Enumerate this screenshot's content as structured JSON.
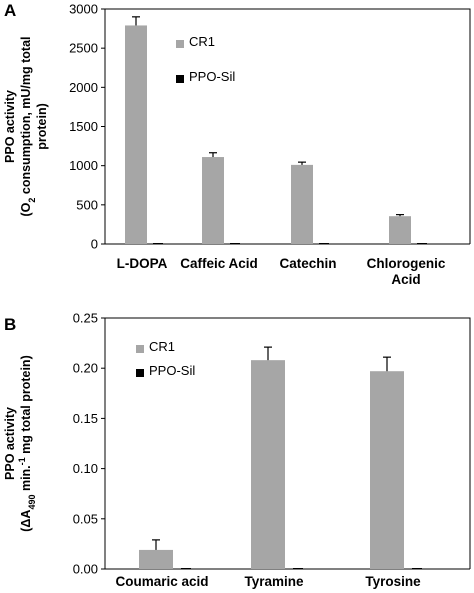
{
  "chart_data": [
    {
      "panel_letter": "A",
      "type": "bar",
      "ylabel_line1": "PPO activity",
      "ylabel_line2_parts": [
        "(O",
        "2",
        " consumption, mU/mg total"
      ],
      "ylabel_line3": "protein)",
      "ylim": [
        0,
        3000
      ],
      "yticks": [
        0,
        500,
        1000,
        1500,
        2000,
        2500,
        3000
      ],
      "ytick_labels": [
        "0",
        "500",
        "1000",
        "1500",
        "2000",
        "2500",
        "3000"
      ],
      "categories": [
        "L-DOPA",
        "Caffeic Acid",
        "Catechin",
        "Chlorogenic Acid"
      ],
      "category_lines": [
        [
          "L-DOPA"
        ],
        [
          "Caffeic Acid"
        ],
        [
          "Catechin"
        ],
        [
          "Chlorogenic",
          "Acid"
        ]
      ],
      "series": [
        {
          "name": "CR1",
          "color": "#a6a6a6",
          "values": [
            2790,
            1110,
            1010,
            355
          ],
          "errors": [
            110,
            55,
            35,
            20
          ]
        },
        {
          "name": "PPO-Sil",
          "color": "#000000",
          "values": [
            5,
            10,
            5,
            10
          ],
          "errors": [
            0,
            0,
            0,
            0
          ]
        }
      ],
      "legend_position": "top-right",
      "grid": false
    },
    {
      "panel_letter": "B",
      "type": "bar",
      "ylabel_line1": "PPO activity",
      "ylabel_line2_parts": [
        "(ΔA",
        "490",
        " min.",
        "-1",
        " mg total protein)"
      ],
      "ylim": [
        0,
        0.25
      ],
      "yticks": [
        0,
        0.05,
        0.1,
        0.15,
        0.2,
        0.25
      ],
      "ytick_labels": [
        "0.00",
        "0.05",
        "0.10",
        "0.15",
        "0.20",
        "0.25"
      ],
      "categories": [
        "Coumaric acid",
        "Tyramine",
        "Tyrosine"
      ],
      "category_lines": [
        [
          "Coumaric acid"
        ],
        [
          "Tyramine"
        ],
        [
          "Tyrosine"
        ]
      ],
      "series": [
        {
          "name": "CR1",
          "color": "#a6a6a6",
          "values": [
            0.019,
            0.208,
            0.197
          ],
          "errors": [
            0.01,
            0.013,
            0.014
          ]
        },
        {
          "name": "PPO-Sil",
          "color": "#000000",
          "values": [
            0,
            0,
            0
          ],
          "errors": [
            0,
            0,
            0
          ]
        }
      ],
      "legend_position": "top-left",
      "grid": false
    }
  ]
}
